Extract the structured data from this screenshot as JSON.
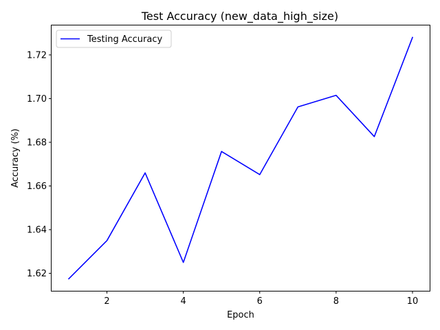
{
  "chart_data": {
    "type": "line",
    "title": "Test Accuracy (new_data_high_size)",
    "xlabel": "Epoch",
    "ylabel": "Accuracy (%)",
    "x": [
      1,
      2,
      3,
      4,
      5,
      6,
      7,
      8,
      9,
      10
    ],
    "series": [
      {
        "name": "Testing Accuracy",
        "color": "#0000ff",
        "values": [
          1.6175,
          1.635,
          1.666,
          1.625,
          1.6758,
          1.6652,
          1.6962,
          1.7015,
          1.6826,
          1.728
        ]
      }
    ],
    "xlim": [
      0.55,
      10.45
    ],
    "ylim": [
      1.612,
      1.7335
    ],
    "xticks": [
      2,
      4,
      6,
      8,
      10
    ],
    "xtick_labels": [
      "2",
      "4",
      "6",
      "8",
      "10"
    ],
    "yticks": [
      1.62,
      1.64,
      1.66,
      1.68,
      1.7,
      1.72
    ],
    "ytick_labels": [
      "1.62",
      "1.64",
      "1.66",
      "1.68",
      "1.70",
      "1.72"
    ],
    "legend_position": "top-left",
    "grid": false
  }
}
